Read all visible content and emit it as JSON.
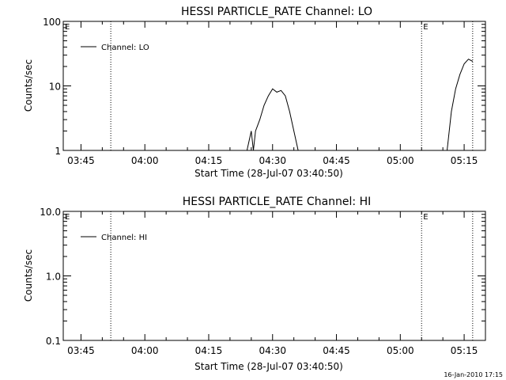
{
  "footer_stamp": "16-Jan-2010 17:15",
  "chart_data": [
    {
      "type": "line",
      "title": "HESSI PARTICLE_RATE Channel: LO",
      "xlabel": "Start Time (28-Jul-07 03:40:50)",
      "ylabel": "Counts/sec",
      "yscale": "log",
      "ylim": [
        1,
        100
      ],
      "xlim": [
        "03:40:50",
        "05:20:00"
      ],
      "xticks": [
        "03:45",
        "04:00",
        "04:15",
        "04:30",
        "04:45",
        "05:00",
        "05:15"
      ],
      "yticks": [
        "1",
        "10",
        "100"
      ],
      "grid": false,
      "legend": {
        "position": "top-left",
        "entries": [
          "Channel: LO"
        ]
      },
      "event_markers": [
        {
          "time": "03:52",
          "label": ""
        },
        {
          "time": "05:05",
          "label": "E"
        },
        {
          "time": "05:17",
          "label": ""
        },
        {
          "time": "03:40:50",
          "label": "E"
        }
      ],
      "series": [
        {
          "name": "Channel: LO",
          "points": [
            [
              "04:24",
              1.0
            ],
            [
              "04:25",
              2.0
            ],
            [
              "04:25:30",
              1.0
            ],
            [
              "04:26",
              2.0
            ],
            [
              "04:27",
              3.0
            ],
            [
              "04:28",
              5.0
            ],
            [
              "04:29",
              7.0
            ],
            [
              "04:30",
              9.0
            ],
            [
              "04:31",
              8.0
            ],
            [
              "04:32",
              8.5
            ],
            [
              "04:33",
              7.0
            ],
            [
              "04:34",
              4.0
            ],
            [
              "04:35",
              2.0
            ],
            [
              "04:36",
              1.0
            ],
            [
              "05:11",
              1.0
            ],
            [
              "05:12",
              4.0
            ],
            [
              "05:13",
              9.0
            ],
            [
              "05:14",
              15.0
            ],
            [
              "05:15",
              22.0
            ],
            [
              "05:16",
              26.0
            ],
            [
              "05:17",
              24.0
            ]
          ]
        }
      ]
    },
    {
      "type": "line",
      "title": "HESSI PARTICLE_RATE Channel: HI",
      "xlabel": "Start Time (28-Jul-07 03:40:50)",
      "ylabel": "Counts/sec",
      "yscale": "log",
      "ylim": [
        0.1,
        10.0
      ],
      "xlim": [
        "03:40:50",
        "05:20:00"
      ],
      "xticks": [
        "03:45",
        "04:00",
        "04:15",
        "04:30",
        "04:45",
        "05:00",
        "05:15"
      ],
      "yticks": [
        "0.1",
        "1.0",
        "10.0"
      ],
      "grid": false,
      "legend": {
        "position": "top-left",
        "entries": [
          "Channel: HI"
        ]
      },
      "event_markers": [
        {
          "time": "03:52",
          "label": ""
        },
        {
          "time": "05:05",
          "label": "E"
        },
        {
          "time": "05:17",
          "label": ""
        },
        {
          "time": "03:40:50",
          "label": "E"
        }
      ],
      "series": [
        {
          "name": "Channel: HI",
          "points": []
        }
      ]
    }
  ]
}
